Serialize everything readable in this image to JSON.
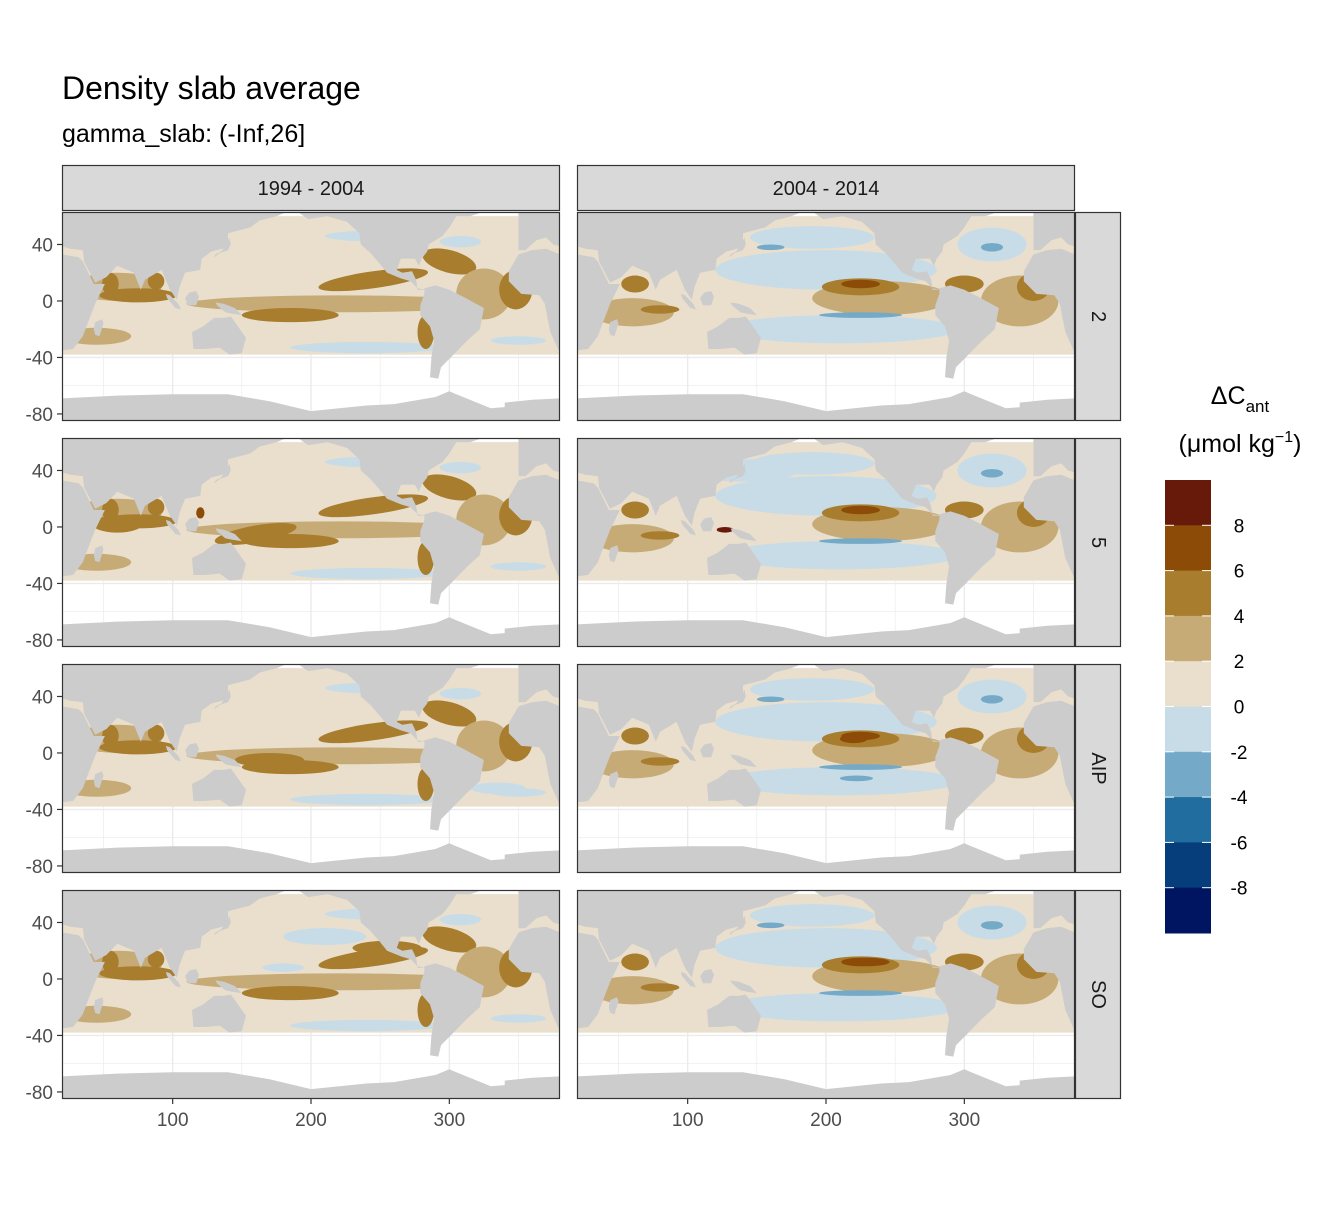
{
  "chart_data": {
    "type": "heatmap",
    "title": "Density slab average",
    "subtitle": "gamma_slab: (-Inf,26]",
    "xlabel": "",
    "ylabel": "",
    "xlim": [
      20,
      380
    ],
    "ylim": [
      -85,
      63
    ],
    "x_ticks": [
      100,
      200,
      300
    ],
    "y_ticks": [
      40,
      0,
      -40,
      -80
    ],
    "grid": true,
    "columns": [
      "1994 - 2004",
      "2004 - 2014"
    ],
    "rows": [
      "2",
      "5",
      "AIP",
      "SO"
    ],
    "legend": {
      "placement": "right",
      "title_main": "ΔC",
      "title_sub": "ant",
      "units_open": "(μmol kg",
      "units_exp": "−1",
      "units_close": ")",
      "breaks": [
        8,
        6,
        4,
        2,
        0,
        -2,
        -4,
        -6,
        -8
      ],
      "break_labels": [
        "8",
        "6",
        "4",
        "2",
        "0",
        "-2",
        "-4",
        "-6",
        "-8"
      ],
      "colors": [
        "#67190a",
        "#8c4b06",
        "#a97d2e",
        "#c7ab76",
        "#e9dfcc",
        "#c8dce8",
        "#74a9c8",
        "#216d9f",
        "#063d7b",
        "#001561"
      ]
    },
    "colors": {
      "land": "#cccccc",
      "no_data": "#ffffff",
      "strip": "#d9d9d9",
      "grid": "#ebebeb"
    }
  }
}
